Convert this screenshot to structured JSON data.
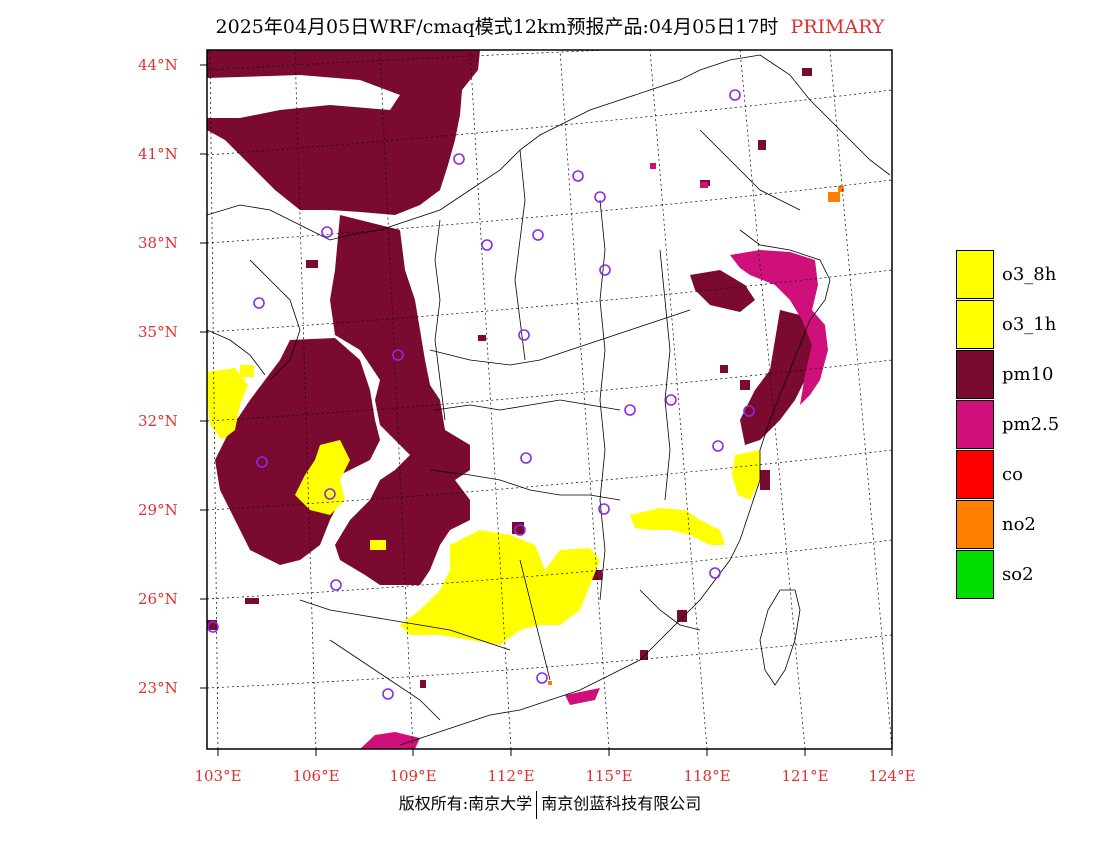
{
  "title": {
    "main": "2025年04月05日WRF/cmaq模式12km预报产品:04月05日17时",
    "tag": "PRIMARY"
  },
  "lat_labels": [
    "44°N",
    "41°N",
    "38°N",
    "35°N",
    "32°N",
    "29°N",
    "26°N",
    "23°N"
  ],
  "lon_labels": [
    "103°E",
    "106°E",
    "109°E",
    "112°E",
    "115°E",
    "118°E",
    "121°E",
    "124°E"
  ],
  "legend": [
    {
      "label": "o3_8h",
      "color": "#ffff00"
    },
    {
      "label": "o3_1h",
      "color": "#ffff00"
    },
    {
      "label": "pm10",
      "color": "#7a0a30"
    },
    {
      "label": "pm2.5",
      "color": "#d0107a"
    },
    {
      "label": "co",
      "color": "#ff0000"
    },
    {
      "label": "no2",
      "color": "#ff8000"
    },
    {
      "label": "so2",
      "color": "#00dd00"
    }
  ],
  "footer": {
    "left": "版权所有:南京大学",
    "right": "南京创蓝科技有限公司"
  }
}
